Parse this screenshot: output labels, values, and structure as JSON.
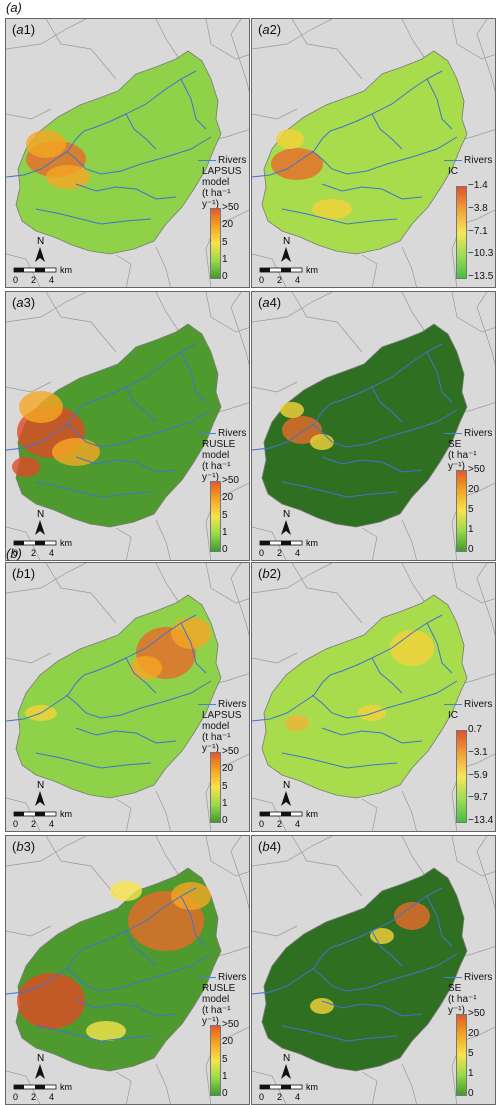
{
  "sections": [
    {
      "label": "(a)",
      "panels": [
        {
          "id": "a1",
          "prefix": "a",
          "num": "1",
          "legend": [
            "LAPSUS",
            "model",
            "(t ha⁻¹ y⁻¹)"
          ],
          "ticks": [
            ">50",
            "20",
            "5",
            "1",
            "0"
          ],
          "palette": "lapsus",
          "fill": "#8fd24a"
        },
        {
          "id": "a2",
          "prefix": "a",
          "num": "2",
          "legend": [
            "IC"
          ],
          "ticks": [
            "−1.4",
            "−3.8",
            "−7.1",
            "−10.3",
            "−13.5"
          ],
          "palette": "ic",
          "fill": "#a9dc4c"
        },
        {
          "id": "a3",
          "prefix": "a",
          "num": "3",
          "legend": [
            "RUSLE",
            "model",
            "(t ha⁻¹ y⁻¹)"
          ],
          "ticks": [
            ">50",
            "20",
            "5",
            "1",
            "0"
          ],
          "palette": "lapsus",
          "fill": "#4e9a2f"
        },
        {
          "id": "a4",
          "prefix": "a",
          "num": "4",
          "legend": [
            "SE",
            "(t ha⁻¹ y⁻¹)"
          ],
          "ticks": [
            ">50",
            "20",
            "5",
            "1",
            "0"
          ],
          "palette": "lapsus",
          "fill": "#2f6f22"
        }
      ]
    },
    {
      "label": "(b)",
      "panels": [
        {
          "id": "b1",
          "prefix": "b",
          "num": "1",
          "legend": [
            "LAPSUS",
            "model",
            "(t ha⁻¹ y⁻¹)"
          ],
          "ticks": [
            ">50",
            "20",
            "5",
            "1",
            "0"
          ],
          "palette": "lapsus",
          "fill": "#8fd24a"
        },
        {
          "id": "b2",
          "prefix": "b",
          "num": "2",
          "legend": [
            "IC"
          ],
          "ticks": [
            "0.7",
            "−3.1",
            "−5.9",
            "−9.7",
            "−13.4"
          ],
          "palette": "ic",
          "fill": "#a9dc4c"
        },
        {
          "id": "b3",
          "prefix": "b",
          "num": "3",
          "legend": [
            "RUSLE",
            "model",
            "(t ha⁻¹ y⁻¹)"
          ],
          "ticks": [
            ">50",
            "20",
            "5",
            "1",
            "0"
          ],
          "palette": "lapsus",
          "fill": "#4e9a2f"
        },
        {
          "id": "b4",
          "prefix": "b",
          "num": "4",
          "legend": [
            "SE",
            "(t ha⁻¹ y⁻¹)"
          ],
          "ticks": [
            ">50",
            "20",
            "5",
            "1",
            "0"
          ],
          "palette": "lapsus",
          "fill": "#2f6f22"
        }
      ]
    }
  ],
  "rivers_label": "Rivers",
  "north_label": "N",
  "scale_labels": [
    "0",
    "2",
    "4"
  ],
  "scale_unit": "km",
  "colors": {
    "lapsus_ramp": [
      "#e35a2a",
      "#f5a623",
      "#f7e34b",
      "#9ad94a",
      "#3f9b2c"
    ],
    "ic_ramp": [
      "#e0522c",
      "#f1a13a",
      "#f6e659",
      "#9fdc55",
      "#44c03f"
    ],
    "river": "#3d74d1",
    "background": "#d9d9d9",
    "boundary": "#9a9a9a"
  }
}
